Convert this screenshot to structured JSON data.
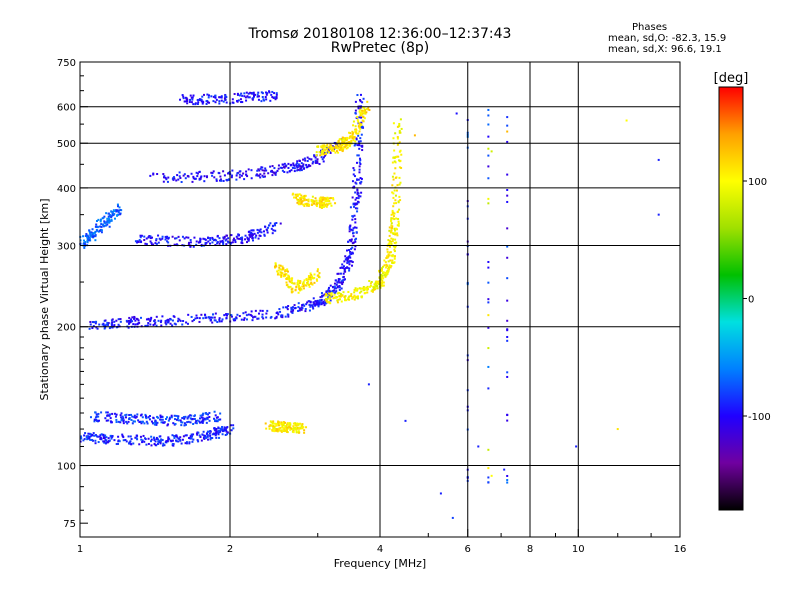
{
  "header": {
    "title_line1": "Tromsø 20180108 12:36:00–12:37:43",
    "title_line2": "RwPretec (8p)"
  },
  "stats": {
    "label": "Phases",
    "o_line": "mean, sd,O: -82.3, 15.9",
    "x_line": "mean, sd,X:  96.6, 19.1"
  },
  "chart_data": {
    "type": "scatter",
    "xlabel": "Frequency [MHz]",
    "ylabel": "Stationary phase Virtual Height [km]",
    "x_scale": "log",
    "y_scale": "log",
    "xlim": [
      1,
      16
    ],
    "ylim": [
      70,
      750
    ],
    "x_ticks": [
      1,
      2,
      4,
      6,
      8,
      10,
      16
    ],
    "y_ticks": [
      75,
      100,
      200,
      300,
      400,
      500,
      600,
      750
    ],
    "x_gridlines": [
      2,
      4,
      6,
      8,
      10
    ],
    "y_gridlines": [
      100,
      200,
      300,
      400,
      500,
      600
    ],
    "grid": true,
    "colorbar": {
      "label": "[deg]",
      "range": [
        -180,
        180
      ],
      "ticks": [
        -100,
        0,
        100
      ],
      "colormap": [
        "#000000",
        "#7000a0",
        "#2000ff",
        "#0080ff",
        "#00e0e0",
        "#00c000",
        "#a0e000",
        "#ffff00",
        "#ffa000",
        "#ff0000"
      ]
    },
    "traces": [
      {
        "mode": "E",
        "x": [
          1.0,
          1.2,
          1.5,
          1.8,
          2.0
        ],
        "y": [
          115,
          114,
          113,
          116,
          120
        ],
        "phase": -90
      },
      {
        "mode": "E",
        "x": [
          1.05,
          1.3,
          1.6,
          1.9
        ],
        "y": [
          128,
          126,
          125,
          128
        ],
        "phase": -85
      },
      {
        "mode": "E",
        "x": [
          2.4,
          2.6,
          2.8
        ],
        "y": [
          122,
          121,
          120
        ],
        "phase": 105
      },
      {
        "mode": "F O",
        "x": [
          1.05,
          1.3,
          1.8,
          2.5,
          3.0,
          3.3,
          3.5,
          3.6,
          3.65
        ],
        "y": [
          200,
          205,
          208,
          213,
          225,
          245,
          290,
          400,
          650
        ],
        "phase": -95
      },
      {
        "mode": "F O",
        "x": [
          1.4,
          2.0,
          2.6,
          3.0,
          3.3
        ],
        "y": [
          420,
          425,
          440,
          460,
          500
        ],
        "phase": -100
      },
      {
        "mode": "F O",
        "x": [
          1.3,
          1.7,
          2.1,
          2.5
        ],
        "y": [
          310,
          305,
          310,
          330
        ],
        "phase": -95
      },
      {
        "mode": "F O",
        "x": [
          1.6,
          2.0,
          2.5
        ],
        "y": [
          620,
          625,
          635
        ],
        "phase": -95
      },
      {
        "mode": "F O",
        "x": [
          1.0,
          1.1,
          1.2
        ],
        "y": [
          300,
          330,
          360
        ],
        "phase": -70
      },
      {
        "mode": "F X",
        "x": [
          3.1,
          3.6,
          4.0,
          4.2,
          4.3,
          4.35
        ],
        "y": [
          230,
          235,
          250,
          280,
          350,
          560
        ],
        "phase": 100
      },
      {
        "mode": "F X",
        "x": [
          3.0,
          3.3,
          3.5,
          3.8
        ],
        "y": [
          480,
          490,
          510,
          610
        ],
        "phase": 110
      },
      {
        "mode": "F X",
        "x": [
          2.5,
          2.7,
          3.0
        ],
        "y": [
          270,
          240,
          260
        ],
        "phase": 110
      },
      {
        "mode": "F X",
        "x": [
          2.7,
          3.0,
          3.2
        ],
        "y": [
          380,
          370,
          375
        ],
        "phase": 110
      }
    ],
    "noise": [
      {
        "x": 5.3,
        "y": 87,
        "phase": -90
      },
      {
        "x": 5.6,
        "y": 77,
        "phase": -80
      },
      {
        "x": 6.3,
        "y": 110,
        "phase": -90
      },
      {
        "x": 6.7,
        "y": 95,
        "phase": 100
      },
      {
        "x": 7.1,
        "y": 98,
        "phase": -90
      },
      {
        "x": 9.9,
        "y": 110,
        "phase": -90
      },
      {
        "x": 4.5,
        "y": 125,
        "phase": -90
      },
      {
        "x": 5.7,
        "y": 580,
        "phase": -95
      },
      {
        "x": 6.7,
        "y": 480,
        "phase": 80
      },
      {
        "x": 7.2,
        "y": 530,
        "phase": 130
      },
      {
        "x": 12.5,
        "y": 560,
        "phase": 100
      },
      {
        "x": 14.5,
        "y": 460,
        "phase": -90
      },
      {
        "x": 14.5,
        "y": 350,
        "phase": -90
      },
      {
        "x": 12.0,
        "y": 120,
        "phase": 110
      },
      {
        "x": 4.7,
        "y": 520,
        "phase": 130
      },
      {
        "x": 3.8,
        "y": 150,
        "phase": -90
      }
    ]
  }
}
